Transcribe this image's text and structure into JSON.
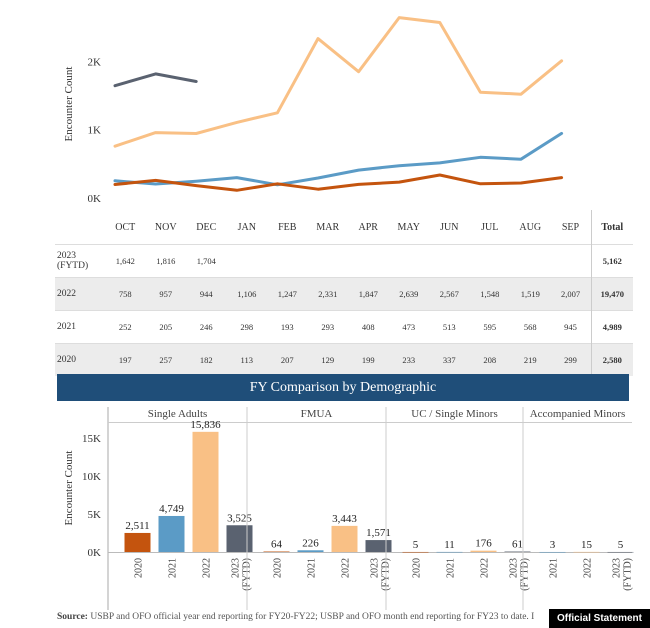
{
  "chart_data": [
    {
      "type": "line",
      "ylabel": "Encounter Count",
      "ylim": [
        0,
        2750
      ],
      "y_ticks": [
        "0K",
        "1K",
        "2K"
      ],
      "categories": [
        "OCT",
        "NOV",
        "DEC",
        "JAN",
        "FEB",
        "MAR",
        "APR",
        "MAY",
        "JUN",
        "JUL",
        "AUG",
        "SEP"
      ],
      "series": [
        {
          "name": "2023 (FYTD)",
          "color": "#5a6270",
          "values": [
            1642,
            1816,
            1704,
            null,
            null,
            null,
            null,
            null,
            null,
            null,
            null,
            null
          ]
        },
        {
          "name": "2022",
          "color": "#f9c085",
          "values": [
            758,
            957,
            944,
            1106,
            1247,
            2331,
            1847,
            2639,
            2567,
            1548,
            1519,
            2007
          ]
        },
        {
          "name": "2021",
          "color": "#5b9bc6",
          "values": [
            252,
            205,
            246,
            298,
            193,
            293,
            408,
            473,
            513,
            595,
            568,
            945
          ]
        },
        {
          "name": "2020",
          "color": "#c4540e",
          "values": [
            197,
            257,
            182,
            113,
            207,
            129,
            199,
            233,
            337,
            208,
            219,
            299
          ]
        }
      ]
    },
    {
      "type": "bar",
      "title": "FY Comparison by Demographic",
      "ylabel": "Encounter Count",
      "ylim": [
        0,
        17000
      ],
      "y_ticks": [
        "0K",
        "5K",
        "10K",
        "15K"
      ],
      "groups": [
        {
          "name": "Single Adults",
          "bars": [
            {
              "label": "2020",
              "value": 2511,
              "text": "2,511",
              "color": "#c4540e"
            },
            {
              "label": "2021",
              "value": 4749,
              "text": "4,749",
              "color": "#5b9bc6"
            },
            {
              "label": "2022",
              "value": 15836,
              "text": "15,836",
              "color": "#f9c085"
            },
            {
              "label": "2023 (FYTD)",
              "value": 3525,
              "text": "3,525",
              "color": "#5a6270"
            }
          ]
        },
        {
          "name": "FMUA",
          "bars": [
            {
              "label": "2020",
              "value": 64,
              "text": "64",
              "color": "#c4540e"
            },
            {
              "label": "2021",
              "value": 226,
              "text": "226",
              "color": "#5b9bc6"
            },
            {
              "label": "2022",
              "value": 3443,
              "text": "3,443",
              "color": "#f9c085"
            },
            {
              "label": "2023 (FYTD)",
              "value": 1571,
              "text": "1,571",
              "color": "#5a6270"
            }
          ]
        },
        {
          "name": "UC / Single Minors",
          "bars": [
            {
              "label": "2020",
              "value": 5,
              "text": "5",
              "color": "#c4540e"
            },
            {
              "label": "2021",
              "value": 11,
              "text": "11",
              "color": "#5b9bc6"
            },
            {
              "label": "2022",
              "value": 176,
              "text": "176",
              "color": "#f9c085"
            },
            {
              "label": "2023 (FYTD)",
              "value": 61,
              "text": "61",
              "color": "#5a6270"
            }
          ]
        },
        {
          "name": "Accompanied Minors",
          "bars": [
            {
              "label": "2021",
              "value": 3,
              "text": "3",
              "color": "#5b9bc6"
            },
            {
              "label": "2022",
              "value": 15,
              "text": "15",
              "color": "#f9c085"
            },
            {
              "label": "2023 (FYTD)",
              "value": 5,
              "text": "5",
              "color": "#5a6270"
            }
          ]
        }
      ]
    }
  ],
  "table": {
    "months": [
      "OCT",
      "NOV",
      "DEC",
      "JAN",
      "FEB",
      "MAR",
      "APR",
      "MAY",
      "JUN",
      "JUL",
      "AUG",
      "SEP"
    ],
    "total_label": "Total",
    "rows": [
      {
        "year": "2023 (FYTD)",
        "values": [
          "1,642",
          "1,816",
          "1,704",
          "",
          "",
          "",
          "",
          "",
          "",
          "",
          "",
          ""
        ],
        "total": "5,162"
      },
      {
        "year": "2022",
        "values": [
          "758",
          "957",
          "944",
          "1,106",
          "1,247",
          "2,331",
          "1,847",
          "2,639",
          "2,567",
          "1,548",
          "1,519",
          "2,007"
        ],
        "total": "19,470"
      },
      {
        "year": "2021",
        "values": [
          "252",
          "205",
          "246",
          "298",
          "193",
          "293",
          "408",
          "473",
          "513",
          "595",
          "568",
          "945"
        ],
        "total": "4,989"
      },
      {
        "year": "2020",
        "values": [
          "197",
          "257",
          "182",
          "113",
          "207",
          "129",
          "199",
          "233",
          "337",
          "208",
          "219",
          "299"
        ],
        "total": "2,580"
      }
    ]
  },
  "banner": "FY Comparison by Demographic",
  "source_label": "Source:",
  "source_text": "USBP and OFO official year end reporting for FY20-FY22; USBP and OFO month end reporting for FY23 to date. I",
  "badge": "Official Statement"
}
